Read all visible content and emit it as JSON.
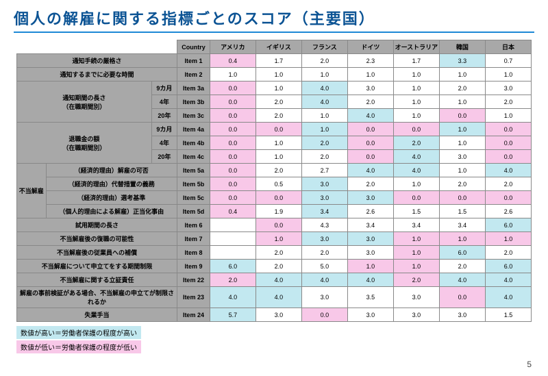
{
  "title": "個人の解雇に関する指標ごとのスコア（主要国）",
  "countryHeader": "Country",
  "countries": [
    "アメリカ",
    "イギリス",
    "フランス",
    "ドイツ",
    "オーストラリア",
    "韓国",
    "日本"
  ],
  "legend_high": "数値が高い＝労働者保護の程度が高い",
  "legend_low": "数値が低い＝労働者保護の程度が低い",
  "pageNumber": "5",
  "colors": {
    "grey": "#a8a8a8",
    "pink": "#f8c8e8",
    "cyan": "#c2e8f0"
  },
  "groupLabel": "不当解雇",
  "rows": [
    {
      "label_span": 3,
      "label": "通知手続の厳格さ",
      "sub": "",
      "item": "Item 1",
      "cells": [
        {
          "v": "0.4",
          "c": "pink"
        },
        {
          "v": "1.7",
          "c": ""
        },
        {
          "v": "2.0",
          "c": ""
        },
        {
          "v": "2.3",
          "c": ""
        },
        {
          "v": "1.7",
          "c": ""
        },
        {
          "v": "3.3",
          "c": "cyan"
        },
        {
          "v": "0.7",
          "c": ""
        }
      ]
    },
    {
      "label_span": 3,
      "label": "通知するまでに必要な時間",
      "sub": "",
      "item": "Item 2",
      "cells": [
        {
          "v": "1.0",
          "c": ""
        },
        {
          "v": "1.0",
          "c": ""
        },
        {
          "v": "1.0",
          "c": ""
        },
        {
          "v": "1.0",
          "c": ""
        },
        {
          "v": "1.0",
          "c": ""
        },
        {
          "v": "1.0",
          "c": ""
        },
        {
          "v": "1.0",
          "c": ""
        }
      ]
    },
    {
      "label_span": 2,
      "label": "通知期間の長さ\n（在職期間別）",
      "sub": "9カ月",
      "item": "Item 3a",
      "rowspan": 3,
      "cells": [
        {
          "v": "0.0",
          "c": "pink"
        },
        {
          "v": "1.0",
          "c": ""
        },
        {
          "v": "4.0",
          "c": "cyan"
        },
        {
          "v": "3.0",
          "c": ""
        },
        {
          "v": "1.0",
          "c": ""
        },
        {
          "v": "2.0",
          "c": ""
        },
        {
          "v": "3.0",
          "c": ""
        }
      ]
    },
    {
      "sub": "4年",
      "item": "Item 3b",
      "cells": [
        {
          "v": "0.0",
          "c": "pink"
        },
        {
          "v": "2.0",
          "c": ""
        },
        {
          "v": "4.0",
          "c": "cyan"
        },
        {
          "v": "2.0",
          "c": ""
        },
        {
          "v": "1.0",
          "c": ""
        },
        {
          "v": "1.0",
          "c": ""
        },
        {
          "v": "2.0",
          "c": ""
        }
      ]
    },
    {
      "sub": "20年",
      "item": "Item 3c",
      "cells": [
        {
          "v": "0.0",
          "c": "pink"
        },
        {
          "v": "2.0",
          "c": ""
        },
        {
          "v": "1.0",
          "c": ""
        },
        {
          "v": "4.0",
          "c": "cyan"
        },
        {
          "v": "1.0",
          "c": ""
        },
        {
          "v": "0.0",
          "c": "pink"
        },
        {
          "v": "1.0",
          "c": ""
        }
      ]
    },
    {
      "label_span": 2,
      "label": "退職金の額\n（在職期間別）",
      "sub": "9カ月",
      "item": "Item 4a",
      "rowspan": 3,
      "cells": [
        {
          "v": "0.0",
          "c": "pink"
        },
        {
          "v": "0.0",
          "c": "pink"
        },
        {
          "v": "1.0",
          "c": "cyan"
        },
        {
          "v": "0.0",
          "c": "pink"
        },
        {
          "v": "0.0",
          "c": "pink"
        },
        {
          "v": "1.0",
          "c": "cyan"
        },
        {
          "v": "0.0",
          "c": "pink"
        }
      ]
    },
    {
      "sub": "4年",
      "item": "Item 4b",
      "cells": [
        {
          "v": "0.0",
          "c": "pink"
        },
        {
          "v": "1.0",
          "c": ""
        },
        {
          "v": "2.0",
          "c": "cyan"
        },
        {
          "v": "0.0",
          "c": "pink"
        },
        {
          "v": "2.0",
          "c": "cyan"
        },
        {
          "v": "1.0",
          "c": ""
        },
        {
          "v": "0.0",
          "c": "pink"
        }
      ]
    },
    {
      "sub": "20年",
      "item": "Item 4c",
      "cells": [
        {
          "v": "0.0",
          "c": "pink"
        },
        {
          "v": "1.0",
          "c": ""
        },
        {
          "v": "2.0",
          "c": ""
        },
        {
          "v": "0.0",
          "c": "pink"
        },
        {
          "v": "4.0",
          "c": "cyan"
        },
        {
          "v": "3.0",
          "c": ""
        },
        {
          "v": "0.0",
          "c": "pink"
        }
      ]
    },
    {
      "group": true,
      "label": "（経済的理由）解雇の可否",
      "item": "Item 5a",
      "cells": [
        {
          "v": "0.0",
          "c": "pink"
        },
        {
          "v": "2.0",
          "c": ""
        },
        {
          "v": "2.7",
          "c": ""
        },
        {
          "v": "4.0",
          "c": "cyan"
        },
        {
          "v": "4.0",
          "c": "cyan"
        },
        {
          "v": "1.0",
          "c": ""
        },
        {
          "v": "4.0",
          "c": "cyan"
        }
      ]
    },
    {
      "group": true,
      "label": "（経済的理由）代替措置の義務",
      "item": "Item 5b",
      "cells": [
        {
          "v": "0.0",
          "c": "pink"
        },
        {
          "v": "0.5",
          "c": ""
        },
        {
          "v": "3.0",
          "c": "cyan"
        },
        {
          "v": "2.0",
          "c": ""
        },
        {
          "v": "1.0",
          "c": ""
        },
        {
          "v": "2.0",
          "c": ""
        },
        {
          "v": "2.0",
          "c": ""
        }
      ]
    },
    {
      "group": true,
      "label": "（経済的理由）選考基準",
      "item": "Item 5c",
      "cells": [
        {
          "v": "0.0",
          "c": "pink"
        },
        {
          "v": "0.0",
          "c": "pink"
        },
        {
          "v": "3.0",
          "c": "cyan"
        },
        {
          "v": "3.0",
          "c": "cyan"
        },
        {
          "v": "0.0",
          "c": "pink"
        },
        {
          "v": "0.0",
          "c": "pink"
        },
        {
          "v": "0.0",
          "c": "pink"
        }
      ]
    },
    {
      "group": true,
      "label": "（個人的理由による解雇）正当化事由",
      "item": "Item 5d",
      "cells": [
        {
          "v": "0.4",
          "c": "pink"
        },
        {
          "v": "1.9",
          "c": ""
        },
        {
          "v": "3.4",
          "c": "cyan"
        },
        {
          "v": "2.6",
          "c": ""
        },
        {
          "v": "1.5",
          "c": ""
        },
        {
          "v": "1.5",
          "c": ""
        },
        {
          "v": "2.6",
          "c": ""
        }
      ]
    },
    {
      "label_span": 3,
      "label": "試用期間の長さ",
      "item": "Item 6",
      "cells": [
        {
          "v": "",
          "c": ""
        },
        {
          "v": "0.0",
          "c": "pink"
        },
        {
          "v": "4.3",
          "c": ""
        },
        {
          "v": "3.4",
          "c": ""
        },
        {
          "v": "3.4",
          "c": ""
        },
        {
          "v": "3.4",
          "c": ""
        },
        {
          "v": "6.0",
          "c": "cyan"
        }
      ]
    },
    {
      "label_span": 3,
      "label": "不当解雇後の復職の可能性",
      "item": "Item 7",
      "cells": [
        {
          "v": "",
          "c": ""
        },
        {
          "v": "1.0",
          "c": "pink"
        },
        {
          "v": "3.0",
          "c": "cyan"
        },
        {
          "v": "3.0",
          "c": "cyan"
        },
        {
          "v": "1.0",
          "c": "pink"
        },
        {
          "v": "1.0",
          "c": "pink"
        },
        {
          "v": "1.0",
          "c": "pink"
        }
      ]
    },
    {
      "label_span": 3,
      "label": "不当解雇後の従業員への補償",
      "item": "Item 8",
      "cells": [
        {
          "v": "",
          "c": ""
        },
        {
          "v": "2.0",
          "c": ""
        },
        {
          "v": "2.0",
          "c": ""
        },
        {
          "v": "3.0",
          "c": ""
        },
        {
          "v": "1.0",
          "c": "pink"
        },
        {
          "v": "6.0",
          "c": "cyan"
        },
        {
          "v": "2.0",
          "c": ""
        }
      ]
    },
    {
      "label_span": 3,
      "label": "不当解雇について申立てをする期間制限",
      "item": "Item 9",
      "cells": [
        {
          "v": "6.0",
          "c": "cyan"
        },
        {
          "v": "2.0",
          "c": ""
        },
        {
          "v": "5.0",
          "c": ""
        },
        {
          "v": "1.0",
          "c": "pink"
        },
        {
          "v": "1.0",
          "c": "pink"
        },
        {
          "v": "2.0",
          "c": ""
        },
        {
          "v": "6.0",
          "c": "cyan"
        }
      ]
    },
    {
      "label_span": 3,
      "label": "不当解雇に関する立証責任",
      "item": "Item 22",
      "cells": [
        {
          "v": "2.0",
          "c": "pink"
        },
        {
          "v": "4.0",
          "c": "cyan"
        },
        {
          "v": "4.0",
          "c": "cyan"
        },
        {
          "v": "4.0",
          "c": "cyan"
        },
        {
          "v": "2.0",
          "c": "pink"
        },
        {
          "v": "4.0",
          "c": "cyan"
        },
        {
          "v": "4.0",
          "c": "cyan"
        }
      ]
    },
    {
      "label_span": 3,
      "label": "解雇の事前検証がある場合、不当解雇の申立てが制限されるか",
      "item": "Item 23",
      "cells": [
        {
          "v": "4.0",
          "c": "cyan"
        },
        {
          "v": "4.0",
          "c": "cyan"
        },
        {
          "v": "3.0",
          "c": ""
        },
        {
          "v": "3.5",
          "c": ""
        },
        {
          "v": "3.0",
          "c": ""
        },
        {
          "v": "0.0",
          "c": "pink"
        },
        {
          "v": "4.0",
          "c": "cyan"
        }
      ]
    },
    {
      "label_span": 3,
      "label": "失業手当",
      "item": "Item 24",
      "cells": [
        {
          "v": "5.7",
          "c": "cyan"
        },
        {
          "v": "3.0",
          "c": ""
        },
        {
          "v": "0.0",
          "c": "pink"
        },
        {
          "v": "3.0",
          "c": ""
        },
        {
          "v": "3.0",
          "c": ""
        },
        {
          "v": "3.0",
          "c": ""
        },
        {
          "v": "1.5",
          "c": ""
        }
      ]
    }
  ]
}
